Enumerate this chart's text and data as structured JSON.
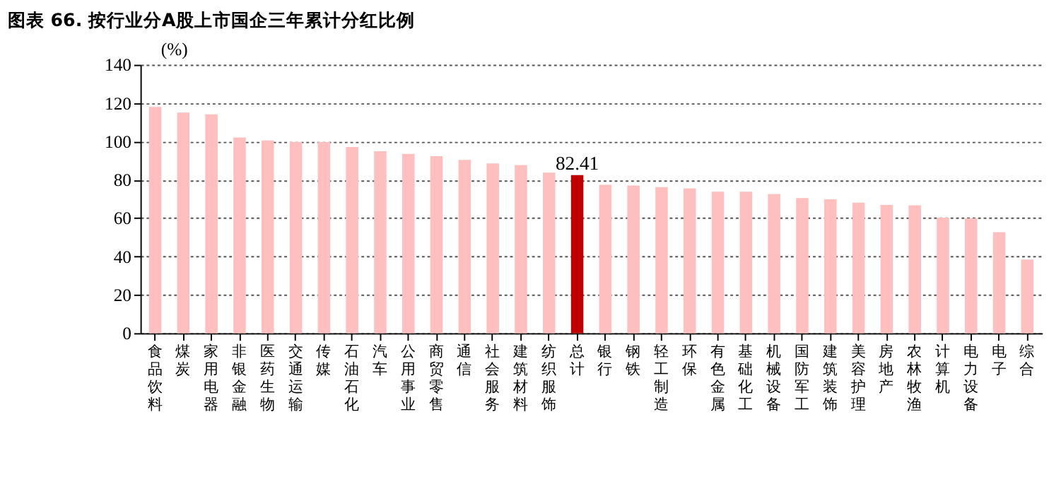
{
  "chart_data": {
    "type": "bar",
    "title": "图表 66. 按行业分A股上市国企三年累计分红比例",
    "ylabel": "(%)",
    "categories": [
      "食品饮料",
      "煤炭",
      "家用电器",
      "非银金融",
      "医药生物",
      "交通运输",
      "传媒",
      "石油石化",
      "汽车",
      "公用事业",
      "商贸零售",
      "通信",
      "社会服务",
      "建筑材料",
      "纺织服饰",
      "总计",
      "银行",
      "钢铁",
      "轻工制造",
      "环保",
      "有色金属",
      "基础化工",
      "机械设备",
      "国防军工",
      "建筑装饰",
      "美容护理",
      "房地产",
      "农林牧渔",
      "计算机",
      "电力设备",
      "电子",
      "综合"
    ],
    "values": [
      118.0,
      115.1,
      114.1,
      102.1,
      100.5,
      99.7,
      99.7,
      97.1,
      94.9,
      93.5,
      92.3,
      90.4,
      88.5,
      87.7,
      83.7,
      82.41,
      77.4,
      77.0,
      76.2,
      75.5,
      73.8,
      73.8,
      72.6,
      70.5,
      69.8,
      68.1,
      66.9,
      66.7,
      60.2,
      59.9,
      52.7,
      38.4
    ],
    "colors": [
      "#ffbfbf",
      "#ffbfbf",
      "#ffbfbf",
      "#ffbfbf",
      "#ffbfbf",
      "#ffbfbf",
      "#ffbfbf",
      "#ffbfbf",
      "#ffbfbf",
      "#ffbfbf",
      "#ffbfbf",
      "#ffbfbf",
      "#ffbfbf",
      "#ffbfbf",
      "#ffbfbf",
      "#c00000",
      "#ffbfbf",
      "#ffbfbf",
      "#ffbfbf",
      "#ffbfbf",
      "#ffbfbf",
      "#ffbfbf",
      "#ffbfbf",
      "#ffbfbf",
      "#ffbfbf",
      "#ffbfbf",
      "#ffbfbf",
      "#ffbfbf",
      "#ffbfbf",
      "#ffbfbf",
      "#ffbfbf",
      "#ffbfbf"
    ],
    "value_labels": [
      null,
      null,
      null,
      null,
      null,
      null,
      null,
      null,
      null,
      null,
      null,
      null,
      null,
      null,
      null,
      "82.41",
      null,
      null,
      null,
      null,
      null,
      null,
      null,
      null,
      null,
      null,
      null,
      null,
      null,
      null,
      null,
      null
    ],
    "ylim": [
      0,
      140
    ],
    "yticks": [
      0,
      20,
      40,
      60,
      80,
      100,
      120,
      140
    ],
    "grid": "y"
  }
}
